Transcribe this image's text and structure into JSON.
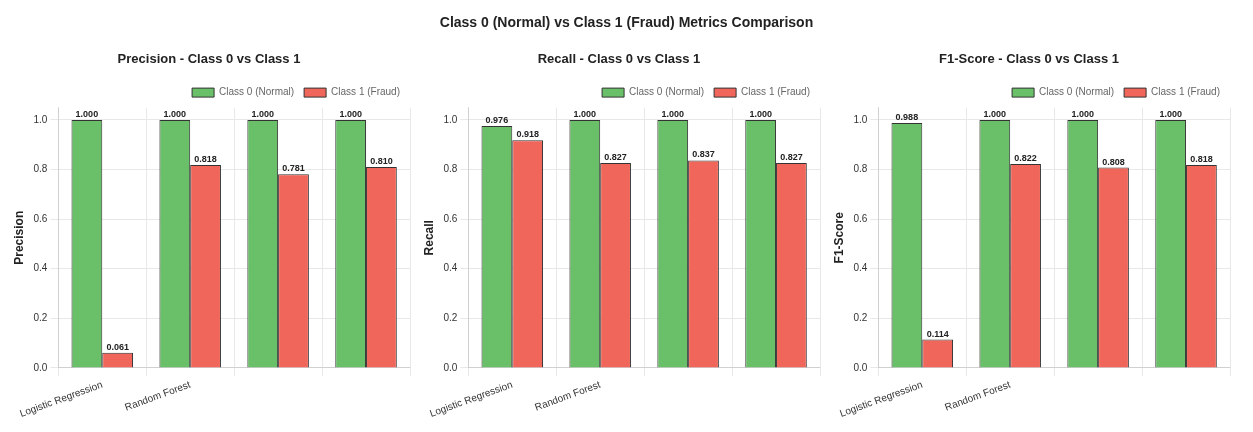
{
  "chart_data": [
    {
      "type": "bar",
      "title": "Precision - Class 0 vs Class 1",
      "ylabel": "Precision",
      "annotations": [
        "Class 0 (Normal) vs Class 1 (Fraud) Metrics Comparison"
      ],
      "categories": [
        "Logistic Regression",
        "Random Forest",
        null,
        null
      ],
      "series": [
        {
          "name": "Class 0 (Normal)",
          "color": "#6abf69",
          "values": [
            1.0,
            1.0,
            1.0,
            1.0
          ],
          "value_labels": [
            "1.000",
            "1.000",
            "1.000",
            "1.000"
          ]
        },
        {
          "name": "Class 1 (Fraud)",
          "color": "#f0665a",
          "values": [
            0.061,
            0.818,
            0.781,
            0.81
          ],
          "value_labels": [
            "0.061",
            "0.818",
            "0.781",
            "0.810"
          ]
        }
      ],
      "ylim": [
        0,
        1.05
      ],
      "yticks": [
        {
          "value": 0,
          "label": "0.0"
        },
        {
          "value": 0.2,
          "label": "0.2"
        },
        {
          "value": 0.4,
          "label": "0.4"
        },
        {
          "value": 0.6,
          "label": "0.6"
        },
        {
          "value": 0.8,
          "label": "0.8"
        },
        {
          "value": 1,
          "label": "1.0"
        }
      ],
      "grid": true,
      "legend": "top right"
    },
    {
      "type": "bar",
      "title": "Recall - Class 0 vs Class 1",
      "ylabel": "Recall",
      "categories": [
        "Logistic Regression",
        "Random Forest",
        null,
        null
      ],
      "series": [
        {
          "name": "Class 0 (Normal)",
          "color": "#6abf69",
          "values": [
            0.976,
            1.0,
            1.0,
            1.0
          ],
          "value_labels": [
            "0.976",
            "1.000",
            "1.000",
            "1.000"
          ]
        },
        {
          "name": "Class 1 (Fraud)",
          "color": "#f0665a",
          "values": [
            0.918,
            0.827,
            0.837,
            0.827
          ],
          "value_labels": [
            "0.918",
            "0.827",
            "0.837",
            "0.827"
          ]
        }
      ],
      "ylim": [
        0,
        1.05
      ],
      "yticks": [
        {
          "value": 0,
          "label": "0.0"
        },
        {
          "value": 0.2,
          "label": "0.2"
        },
        {
          "value": 0.4,
          "label": "0.4"
        },
        {
          "value": 0.6,
          "label": "0.6"
        },
        {
          "value": 0.8,
          "label": "0.8"
        },
        {
          "value": 1,
          "label": "1.0"
        }
      ],
      "grid": true,
      "legend": "top right"
    },
    {
      "type": "bar",
      "title": "F1-Score - Class 0 vs Class 1",
      "ylabel": "F1-Score",
      "categories": [
        "Logistic Regression",
        "Random Forest",
        null,
        null
      ],
      "series": [
        {
          "name": "Class 0 (Normal)",
          "color": "#6abf69",
          "values": [
            0.988,
            1.0,
            1.0,
            1.0
          ],
          "value_labels": [
            "0.988",
            "1.000",
            "1.000",
            "1.000"
          ]
        },
        {
          "name": "Class 1 (Fraud)",
          "color": "#f0665a",
          "values": [
            0.114,
            0.822,
            0.808,
            0.818
          ],
          "value_labels": [
            "0.114",
            "0.822",
            "0.808",
            "0.818"
          ]
        }
      ],
      "ylim": [
        0,
        1.05
      ],
      "yticks": [
        {
          "value": 0,
          "label": "0.0"
        },
        {
          "value": 0.2,
          "label": "0.2"
        },
        {
          "value": 0.4,
          "label": "0.4"
        },
        {
          "value": 0.6,
          "label": "0.6"
        },
        {
          "value": 0.8,
          "label": "0.8"
        },
        {
          "value": 1,
          "label": "1.0"
        }
      ],
      "grid": true,
      "legend": "top right"
    }
  ]
}
